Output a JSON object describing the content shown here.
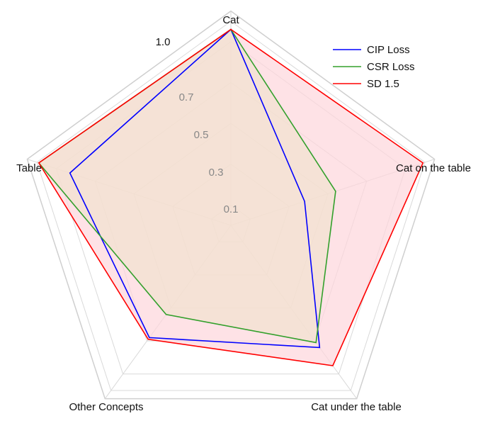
{
  "chart_data": {
    "type": "radar",
    "axes": [
      "Cat",
      "Cat on the table",
      "Cat under the table",
      "Other Concepts",
      "Table"
    ],
    "tick_labels": [
      "0.1",
      "0.3",
      "0.5",
      "0.7",
      "1.0"
    ],
    "tick_values": [
      0.1,
      0.3,
      0.5,
      0.7,
      1.0
    ],
    "rlim": [
      0,
      1.0
    ],
    "grid": true,
    "legend_position": "top-right",
    "series": [
      {
        "name": "CIP Loss",
        "color": "#0000ff",
        "fill": false,
        "values": [
          0.96,
          0.38,
          0.74,
          0.68,
          0.83
        ]
      },
      {
        "name": "CSR Loss",
        "color": "#33a02c",
        "fill": true,
        "fill_color": "#f1e3cf",
        "values": [
          0.96,
          0.54,
          0.71,
          0.54,
          0.99
        ]
      },
      {
        "name": "SD 1.5",
        "color": "#ff0000",
        "fill": true,
        "fill_color": "#fdd5dc",
        "values": [
          0.96,
          0.99,
          0.85,
          0.69,
          0.99
        ]
      }
    ]
  }
}
